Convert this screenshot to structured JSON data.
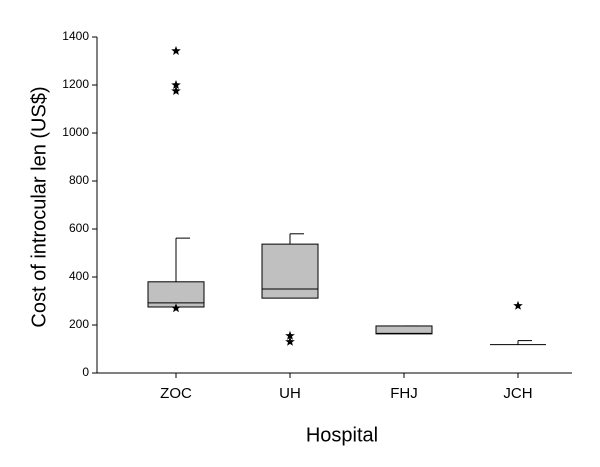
{
  "chart_data": {
    "type": "box",
    "x_label": "Hospital",
    "y_label": "Cost of introcular len (US$)",
    "categories": [
      "ZOC",
      "UH",
      "FHJ",
      "JCH"
    ],
    "whisker_low": [
      275,
      312,
      163,
      118
    ],
    "q1": [
      275,
      312,
      163,
      118
    ],
    "median": [
      292,
      350,
      165,
      118
    ],
    "q3": [
      380,
      537,
      196,
      118
    ],
    "whisker_high": [
      562,
      580,
      196,
      135
    ],
    "outliers": [
      [
        1342,
        1200,
        1175,
        270
      ],
      [
        155,
        130
      ],
      [],
      [
        280
      ]
    ],
    "color": "#c0c0c0",
    "ylim": [
      0,
      1400
    ],
    "yticks": [
      0,
      200,
      400,
      600,
      800,
      1000,
      1200,
      1400
    ]
  }
}
